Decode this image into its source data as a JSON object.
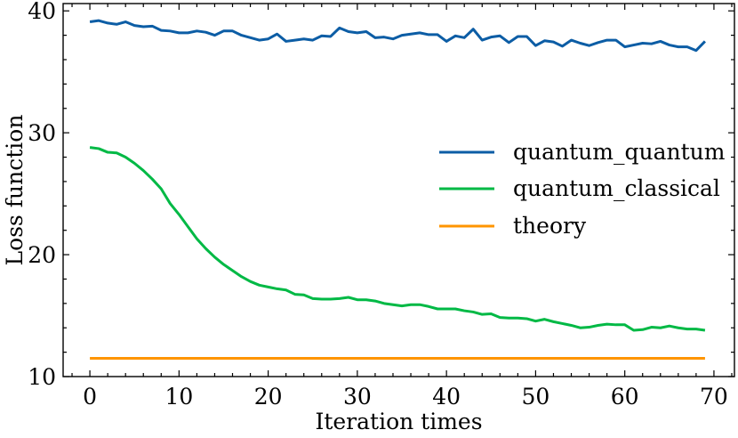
{
  "chart_data": {
    "type": "line",
    "title": "",
    "xlabel": "Iteration times",
    "ylabel": "Loss function",
    "xlim": [
      -3,
      72.3
    ],
    "ylim": [
      10,
      40.6
    ],
    "xticks": [
      0,
      10,
      20,
      30,
      40,
      50,
      60,
      70
    ],
    "yticks": [
      10,
      20,
      30,
      40
    ],
    "xtick_labels": [
      "0",
      "10",
      "20",
      "30",
      "40",
      "50",
      "60",
      "70"
    ],
    "ytick_labels": [
      "10",
      "20",
      "30",
      "40"
    ],
    "grid": false,
    "legend_position": "center-right",
    "series": [
      {
        "name": "quantum_quantum",
        "color": "#0c5da5",
        "x": [
          0,
          1,
          2,
          3,
          4,
          5,
          6,
          7,
          8,
          9,
          10,
          11,
          12,
          13,
          14,
          15,
          16,
          17,
          18,
          19,
          20,
          21,
          22,
          23,
          24,
          25,
          26,
          27,
          28,
          29,
          30,
          31,
          32,
          33,
          34,
          35,
          36,
          37,
          38,
          39,
          40,
          41,
          42,
          43,
          44,
          45,
          46,
          47,
          48,
          49,
          50,
          51,
          52,
          53,
          54,
          55,
          56,
          57,
          58,
          59,
          60,
          61,
          62,
          63,
          64,
          65,
          66,
          67,
          68,
          69
        ],
        "values": [
          39.1,
          39.2,
          39.0,
          38.9,
          39.1,
          38.8,
          38.7,
          38.75,
          38.4,
          38.35,
          38.2,
          38.2,
          38.35,
          38.25,
          38.0,
          38.35,
          38.35,
          38.0,
          37.8,
          37.6,
          37.7,
          38.1,
          37.5,
          37.6,
          37.7,
          37.6,
          37.95,
          37.9,
          38.6,
          38.3,
          38.2,
          38.3,
          37.8,
          37.85,
          37.7,
          38.0,
          38.1,
          38.2,
          38.05,
          38.05,
          37.5,
          37.95,
          37.8,
          38.5,
          37.6,
          37.85,
          37.95,
          37.4,
          37.9,
          37.9,
          37.15,
          37.55,
          37.45,
          37.1,
          37.6,
          37.35,
          37.15,
          37.4,
          37.6,
          37.6,
          37.05,
          37.2,
          37.35,
          37.3,
          37.5,
          37.2,
          37.05,
          37.05,
          36.75,
          37.5
        ]
      },
      {
        "name": "quantum_classical",
        "color": "#00b945",
        "x": [
          0,
          1,
          2,
          3,
          4,
          5,
          6,
          7,
          8,
          9,
          10,
          11,
          12,
          13,
          14,
          15,
          16,
          17,
          18,
          19,
          20,
          21,
          22,
          23,
          24,
          25,
          26,
          27,
          28,
          29,
          30,
          31,
          32,
          33,
          34,
          35,
          36,
          37,
          38,
          39,
          40,
          41,
          42,
          43,
          44,
          45,
          46,
          47,
          48,
          49,
          50,
          51,
          52,
          53,
          54,
          55,
          56,
          57,
          58,
          59,
          60,
          61,
          62,
          63,
          64,
          65,
          66,
          67,
          68,
          69
        ],
        "values": [
          28.8,
          28.7,
          28.4,
          28.35,
          28.0,
          27.5,
          26.9,
          26.2,
          25.4,
          24.2,
          23.3,
          22.3,
          21.3,
          20.5,
          19.8,
          19.2,
          18.7,
          18.2,
          17.8,
          17.5,
          17.35,
          17.2,
          17.1,
          16.75,
          16.7,
          16.4,
          16.35,
          16.35,
          16.4,
          16.5,
          16.3,
          16.3,
          16.2,
          16.0,
          15.9,
          15.8,
          15.9,
          15.9,
          15.75,
          15.55,
          15.55,
          15.55,
          15.4,
          15.3,
          15.1,
          15.15,
          14.85,
          14.8,
          14.8,
          14.75,
          14.55,
          14.7,
          14.5,
          14.35,
          14.2,
          14.0,
          14.05,
          14.2,
          14.3,
          14.25,
          14.25,
          13.8,
          13.85,
          14.05,
          14.0,
          14.15,
          14.0,
          13.9,
          13.9,
          13.8
        ]
      },
      {
        "name": "theory",
        "color": "#ff9500",
        "x": [
          0,
          69
        ],
        "values": [
          11.5,
          11.5
        ]
      }
    ]
  }
}
